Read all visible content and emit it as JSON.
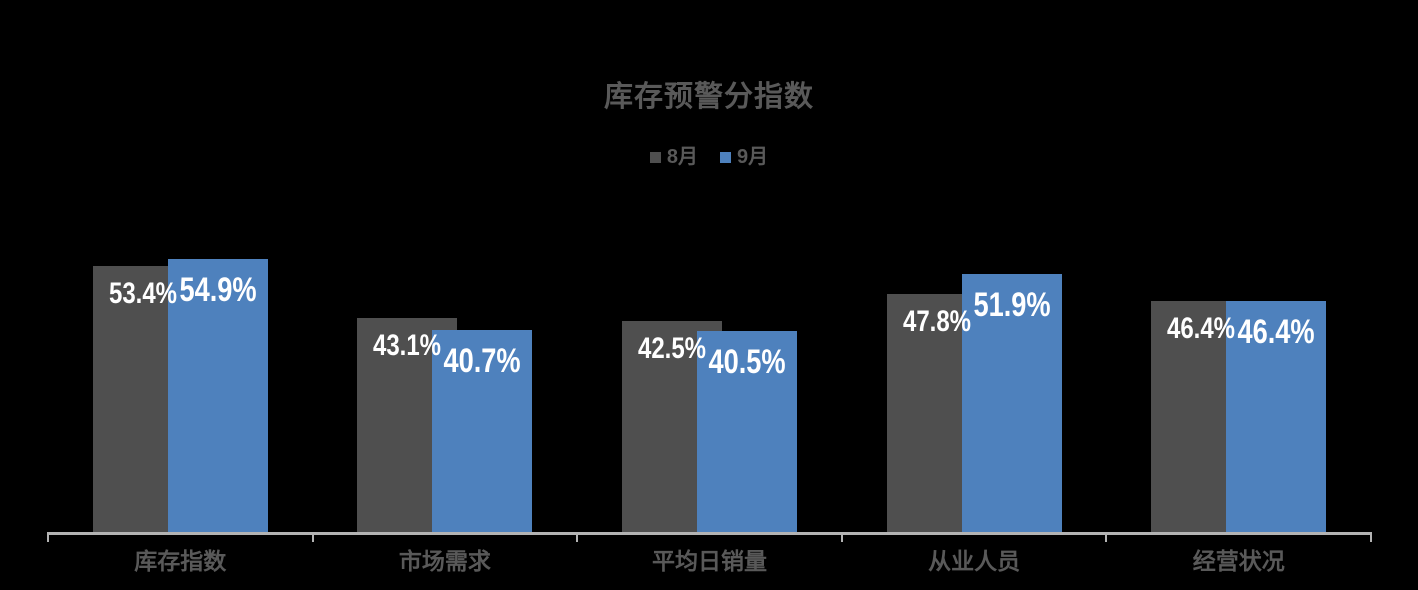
{
  "chart_data": {
    "type": "bar",
    "title": "库存预警分指数",
    "categories": [
      "库存指数",
      "市场需求",
      "平均日销量",
      "从业人员",
      "经营状况"
    ],
    "series": [
      {
        "name": "8月",
        "color": "#4F4F4F",
        "values": [
          53.4,
          43.1,
          42.5,
          47.8,
          46.4
        ],
        "labels": [
          "53.4%",
          "43.1%",
          "42.5%",
          "47.8%",
          "46.4%"
        ]
      },
      {
        "name": "9月",
        "color": "#4E81BD",
        "values": [
          54.9,
          40.7,
          40.5,
          51.9,
          46.4
        ],
        "labels": [
          "54.9%",
          "40.7%",
          "40.5%",
          "51.9%",
          "46.4%"
        ]
      }
    ],
    "value_suffix": "%",
    "ylim": [
      0,
      60
    ],
    "grid": false,
    "legend_position": "top-center",
    "data_label_position": "inside-top",
    "colors": {
      "background": "#000000",
      "text": "#595959",
      "data_label": "#FFFFFF",
      "axis": "#B3B3B3"
    }
  }
}
